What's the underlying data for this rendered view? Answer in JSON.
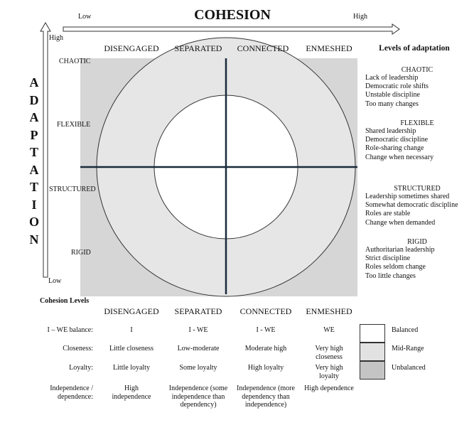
{
  "cohesion_axis": {
    "title": "COHESION",
    "low": "Low",
    "high": "High"
  },
  "adaptation_axis": {
    "title": "ADAPTATION",
    "high": "High",
    "low": "Low"
  },
  "cohesion_columns": [
    "DISENGAGED",
    "SEPARATED",
    "CONNECTED",
    "ENMESHED"
  ],
  "adaptation_rows": [
    "CHAOTIC",
    "FLEXIBLE",
    "STRUCTURED",
    "RIGID"
  ],
  "levels_of_adaptation": {
    "title": "Levels of adaptation",
    "groups": [
      {
        "name": "CHAOTIC",
        "items": [
          "Lack of leadership",
          "Democratic role shifts",
          "Unstable discipline",
          "Too many changes"
        ]
      },
      {
        "name": "FLEXIBLE",
        "items": [
          "Shared leadership",
          "Democratic discipline",
          "Role-sharing change",
          "Change when necessary"
        ]
      },
      {
        "name": "STRUCTURED",
        "items": [
          "Leadership sometimes shared",
          "Somewhat democratic discipline",
          "Roles are stable",
          "Change when demanded"
        ]
      },
      {
        "name": "RIGID",
        "items": [
          "Authoritarian leadership",
          "Strict discipline",
          "Roles seldom change",
          "Too little changes"
        ]
      }
    ]
  },
  "cohesion_levels": {
    "title": "Cohesion Levels",
    "columns": [
      "DISENGAGED",
      "SEPARATED",
      "CONNECTED",
      "ENMESHED"
    ],
    "rows": [
      {
        "label": "I – WE balance:",
        "cells": [
          "I",
          "I - WE",
          "I - WE",
          "WE"
        ]
      },
      {
        "label": "Closeness:",
        "cells": [
          "Little closeness",
          "Low-moderate",
          "Moderate high",
          "Very high closeness"
        ]
      },
      {
        "label": "Loyalty:",
        "cells": [
          "Little loyalty",
          "Some loyalty",
          "High loyalty",
          "Very high loyalty"
        ]
      },
      {
        "label": "Independence / dependence:",
        "cells": [
          "High independence",
          "Independence (some independence than dependency)",
          "Independence (more dependency than independence)",
          "High dependence"
        ]
      }
    ]
  },
  "legend": [
    {
      "label": "Balanced",
      "color": "#ffffff"
    },
    {
      "label": "Mid-Range",
      "color": "#e2e2e2"
    },
    {
      "label": "Unbalanced",
      "color": "#c4c4c4"
    }
  ],
  "colors": {
    "unbalanced": "#d6d6d6",
    "mid_range": "#e6e6e6",
    "balanced": "#ffffff",
    "lines": "#1a2a3a"
  }
}
